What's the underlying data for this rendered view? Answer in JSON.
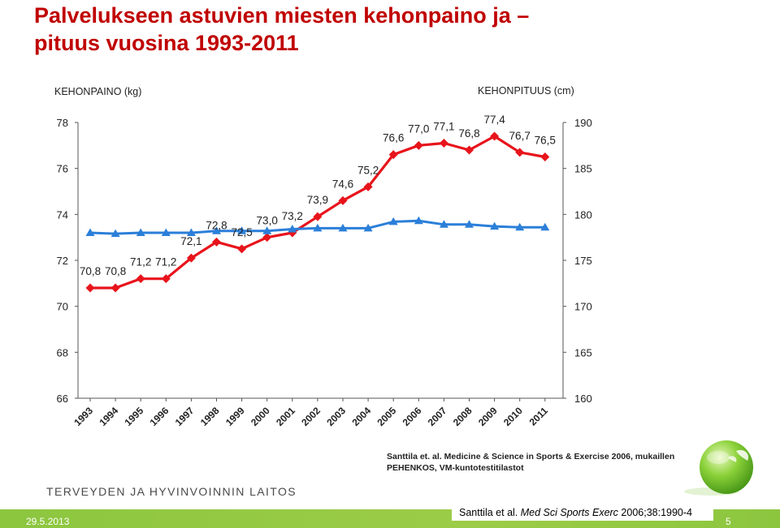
{
  "slide": {
    "title_line1": "Palvelukseen astuvien miesten kehonpaino ja –",
    "title_line2": "pituus vuosina 1993-2011",
    "source_line1": "Santtila et. al. Medicine & Science in Sports & Exercise 2006, mukaillen",
    "source_line2": "PEHENKOS, VM-kuntotestitilastot",
    "organization": "TERVEYDEN JA HYVINVOINNIN LAITOS",
    "date": "29.5.2013",
    "page_number": "5",
    "citation_plain": "Santtila et al. ",
    "citation_italic": "Med Sci Sports Exerc",
    "citation_tail": " 2006;38:1990-4",
    "colors": {
      "title": "#c00000",
      "band": "#8cc63f",
      "weight_series": "#e8141c",
      "height_series": "#2b7fd9"
    }
  },
  "chart_data": {
    "type": "line",
    "title": "",
    "xlabel": "",
    "ylabel": "KEHONPAINO (kg)",
    "y2label": "KEHONPITUUS (cm)",
    "ylim": [
      66,
      78
    ],
    "y2lim": [
      160,
      190
    ],
    "yticks": [
      "66",
      "68",
      "70",
      "72",
      "74",
      "76",
      "78"
    ],
    "y2ticks": [
      "160",
      "165",
      "170",
      "175",
      "180",
      "185",
      "190"
    ],
    "grid": false,
    "x": [
      "1993",
      "1994",
      "1995",
      "1996",
      "1997",
      "1998",
      "1999",
      "2000",
      "2001",
      "2002",
      "2003",
      "2004",
      "2005",
      "2006",
      "2007",
      "2008",
      "2009",
      "2010",
      "2011"
    ],
    "series": [
      {
        "axis": "left",
        "marker": "diamond",
        "values": [
          70.8,
          70.8,
          71.2,
          71.2,
          72.1,
          72.8,
          72.5,
          73.0,
          73.2,
          73.9,
          74.6,
          75.2,
          76.6,
          77.0,
          77.1,
          76.8,
          77.4,
          76.7,
          76.5
        ],
        "labels": [
          "70,8",
          "70,8",
          "71,2",
          "71,2",
          "72,1",
          "72,8",
          "72,5",
          "73,0",
          "73,2",
          "73,9",
          "74,6",
          "75,2",
          "76,6",
          "77,0",
          "77,1",
          "76,8",
          "77,4",
          "76,7",
          "76,5"
        ]
      },
      {
        "axis": "right",
        "marker": "triangle",
        "values": [
          178.0,
          177.9,
          178.0,
          178.0,
          178.0,
          178.2,
          178.2,
          178.2,
          178.4,
          178.5,
          178.5,
          178.5,
          179.2,
          179.3,
          178.9,
          178.9,
          178.7,
          178.6,
          178.6
        ]
      }
    ]
  }
}
